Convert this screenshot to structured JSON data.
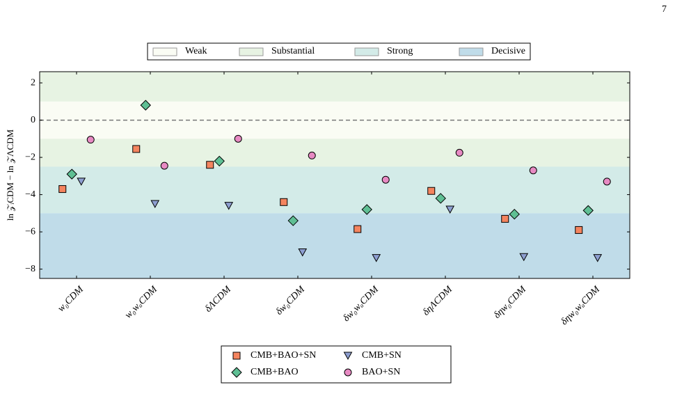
{
  "page_number": "7",
  "chart_data": {
    "type": "scatter",
    "ylabel": "ln 𝒵ᵢCDM − ln 𝒵ΛCDM",
    "categories": [
      "w₀CDM",
      "w₀wₐCDM",
      "δΛCDM",
      "δw₀CDM",
      "δw₀wₐCDM",
      "δηΛCDM",
      "δηw₀CDM",
      "δηw₀wₐCDM"
    ],
    "ylim": [
      -8.5,
      2.6
    ],
    "yticks": [
      {
        "value": 2,
        "label": "2"
      },
      {
        "value": 0,
        "label": "0"
      },
      {
        "value": -2,
        "label": "−2"
      },
      {
        "value": -4,
        "label": "−4"
      },
      {
        "value": -6,
        "label": "−6"
      },
      {
        "value": -8,
        "label": "−8"
      }
    ],
    "reference_line": 0,
    "regions": [
      {
        "name": "Weak",
        "color": "#fafcf4",
        "ranges": [
          [
            -1,
            1
          ]
        ]
      },
      {
        "name": "Substantial",
        "color": "#e7f3e3",
        "ranges": [
          [
            1,
            2.6
          ],
          [
            -2.5,
            -1
          ]
        ]
      },
      {
        "name": "Strong",
        "color": "#d3ebe8",
        "ranges": [
          [
            -5,
            -2.5
          ]
        ]
      },
      {
        "name": "Decisive",
        "color": "#c0dce9",
        "ranges": [
          [
            -8.5,
            -5
          ]
        ]
      }
    ],
    "series": [
      {
        "name": "CMB+BAO+SN",
        "color": "#f4845f",
        "marker": "square",
        "values": [
          -3.7,
          -1.55,
          -2.4,
          -4.4,
          -5.85,
          -3.8,
          -5.3,
          -5.9
        ]
      },
      {
        "name": "CMB+BAO",
        "color": "#5fbf94",
        "marker": "diamond",
        "values": [
          -2.9,
          0.8,
          -2.2,
          -5.4,
          -4.8,
          -4.2,
          -5.05,
          -4.85
        ]
      },
      {
        "name": "CMB+SN",
        "color": "#8d9ed0",
        "marker": "triangle",
        "values": [
          -3.3,
          -4.5,
          -4.6,
          -7.1,
          -7.4,
          -4.8,
          -7.35,
          -7.4
        ]
      },
      {
        "name": "BAO+SN",
        "color": "#e78ac3",
        "marker": "circle",
        "values": [
          -1.05,
          -2.45,
          -1.0,
          -1.9,
          -3.2,
          -1.75,
          -2.7,
          -3.3
        ]
      }
    ]
  }
}
